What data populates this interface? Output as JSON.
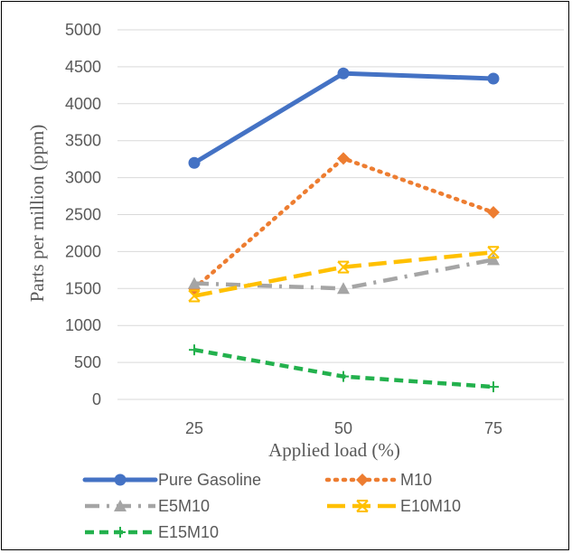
{
  "chart_data": {
    "type": "line",
    "categories": [
      "25",
      "50",
      "75"
    ],
    "xlabel": "Applied load (%)",
    "ylabel": "Parts per million (ppm)",
    "ylim": [
      0,
      5000
    ],
    "ytick_step": 500,
    "grid": true,
    "legend_position": "bottom",
    "series": [
      {
        "name": "Pure Gasoline",
        "values": [
          3200,
          4410,
          4340
        ],
        "color": "#4472C4",
        "marker": "circle",
        "dash": "solid"
      },
      {
        "name": "M10",
        "values": [
          1500,
          3260,
          2530
        ],
        "color": "#ED7D31",
        "marker": "diamond",
        "dash": "dot"
      },
      {
        "name": "E5M10",
        "values": [
          1570,
          1500,
          1890
        ],
        "color": "#A5A5A5",
        "marker": "triangle",
        "dash": "dashdot"
      },
      {
        "name": "E10M10",
        "values": [
          1400,
          1790,
          1990
        ],
        "color": "#FFC000",
        "marker": "star",
        "dash": "longdash"
      },
      {
        "name": "E15M10",
        "values": [
          670,
          310,
          170
        ],
        "color": "#23B14D",
        "marker": "plus",
        "dash": "dash"
      }
    ]
  }
}
